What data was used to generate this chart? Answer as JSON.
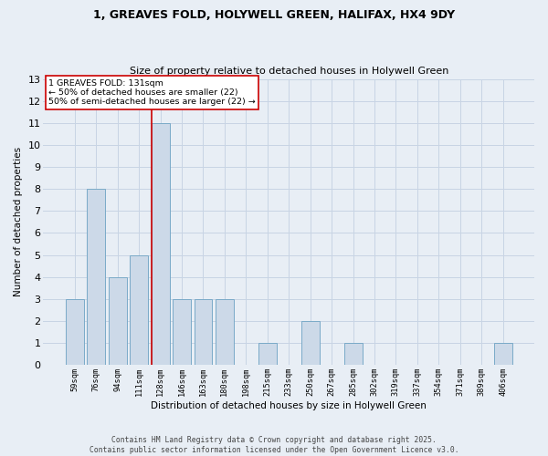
{
  "title1": "1, GREAVES FOLD, HOLYWELL GREEN, HALIFAX, HX4 9DY",
  "title2": "Size of property relative to detached houses in Holywell Green",
  "xlabel": "Distribution of detached houses by size in Holywell Green",
  "ylabel": "Number of detached properties",
  "categories": [
    "59sqm",
    "76sqm",
    "94sqm",
    "111sqm",
    "128sqm",
    "146sqm",
    "163sqm",
    "180sqm",
    "198sqm",
    "215sqm",
    "233sqm",
    "250sqm",
    "267sqm",
    "285sqm",
    "302sqm",
    "319sqm",
    "337sqm",
    "354sqm",
    "371sqm",
    "389sqm",
    "406sqm"
  ],
  "values": [
    3,
    8,
    4,
    5,
    11,
    3,
    3,
    3,
    0,
    1,
    0,
    2,
    0,
    1,
    0,
    0,
    0,
    0,
    0,
    0,
    1
  ],
  "bar_color": "#ccd9e8",
  "bar_edge_color": "#7aaac8",
  "highlight_index": 4,
  "highlight_line_color": "#cc0000",
  "annotation_text": "1 GREAVES FOLD: 131sqm\n← 50% of detached houses are smaller (22)\n50% of semi-detached houses are larger (22) →",
  "annotation_box_color": "#ffffff",
  "annotation_box_edge_color": "#cc0000",
  "ylim": [
    0,
    13
  ],
  "yticks": [
    0,
    1,
    2,
    3,
    4,
    5,
    6,
    7,
    8,
    9,
    10,
    11,
    12,
    13
  ],
  "grid_color": "#c8d4e4",
  "background_color": "#e8eef5",
  "footer1": "Contains HM Land Registry data © Crown copyright and database right 2025.",
  "footer2": "Contains public sector information licensed under the Open Government Licence v3.0."
}
